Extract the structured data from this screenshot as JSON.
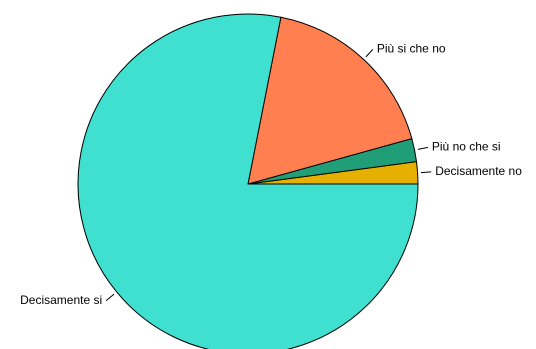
{
  "chart_data": {
    "type": "pie",
    "title": "",
    "start_angle_deg": 0,
    "direction": "counterclockwise",
    "slices": [
      {
        "label": "Decisamente no",
        "value": 2.1,
        "color": "#E6B000"
      },
      {
        "label": "Più no che si",
        "value": 2.2,
        "color": "#1F9E78"
      },
      {
        "label": "Più si che no",
        "value": 17.6,
        "color": "#FF7F50"
      },
      {
        "label": "Decisamente si",
        "value": 78.1,
        "color": "#40E0D0"
      }
    ]
  }
}
